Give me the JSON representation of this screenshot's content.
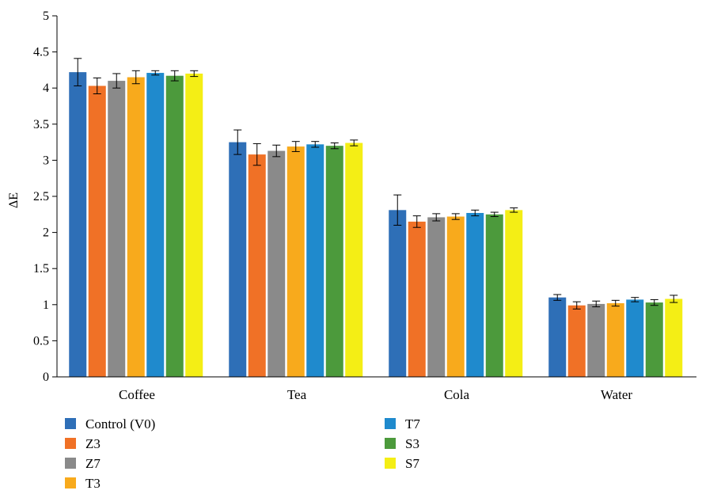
{
  "chart_data": {
    "type": "bar",
    "categories": [
      "Coffee",
      "Tea",
      "Cola",
      "Water"
    ],
    "ylabel": "ΔE",
    "ylim": [
      0,
      5
    ],
    "yticks": [
      "0",
      "0.5",
      "1",
      "1.5",
      "2",
      "2.5",
      "3",
      "3.5",
      "4",
      "4.5",
      "5"
    ],
    "grid": false,
    "legend_position": "bottom-left, two columns",
    "series": [
      {
        "name": "Control (V0)",
        "color": "#2E6FB7",
        "values": [
          4.22,
          3.25,
          2.31,
          1.1
        ],
        "errors": [
          0.19,
          0.17,
          0.21,
          0.04
        ]
      },
      {
        "name": "Z3",
        "color": "#F07126",
        "values": [
          4.03,
          3.08,
          2.15,
          0.99
        ],
        "errors": [
          0.11,
          0.15,
          0.08,
          0.05
        ]
      },
      {
        "name": "Z7",
        "color": "#8A8A8A",
        "values": [
          4.1,
          3.13,
          2.21,
          1.01
        ],
        "errors": [
          0.1,
          0.08,
          0.05,
          0.04
        ]
      },
      {
        "name": "T3",
        "color": "#F8AA1C",
        "values": [
          4.15,
          3.19,
          2.22,
          1.02
        ],
        "errors": [
          0.09,
          0.07,
          0.04,
          0.04
        ]
      },
      {
        "name": "T7",
        "color": "#1F8ACD",
        "values": [
          4.21,
          3.22,
          2.27,
          1.07
        ],
        "errors": [
          0.03,
          0.04,
          0.04,
          0.03
        ]
      },
      {
        "name": "S3",
        "color": "#4C9A3C",
        "values": [
          4.17,
          3.2,
          2.25,
          1.03
        ],
        "errors": [
          0.07,
          0.04,
          0.03,
          0.04
        ]
      },
      {
        "name": "S7",
        "color": "#F4EE15",
        "values": [
          4.2,
          3.24,
          2.31,
          1.08
        ],
        "errors": [
          0.04,
          0.04,
          0.03,
          0.05
        ]
      }
    ]
  }
}
